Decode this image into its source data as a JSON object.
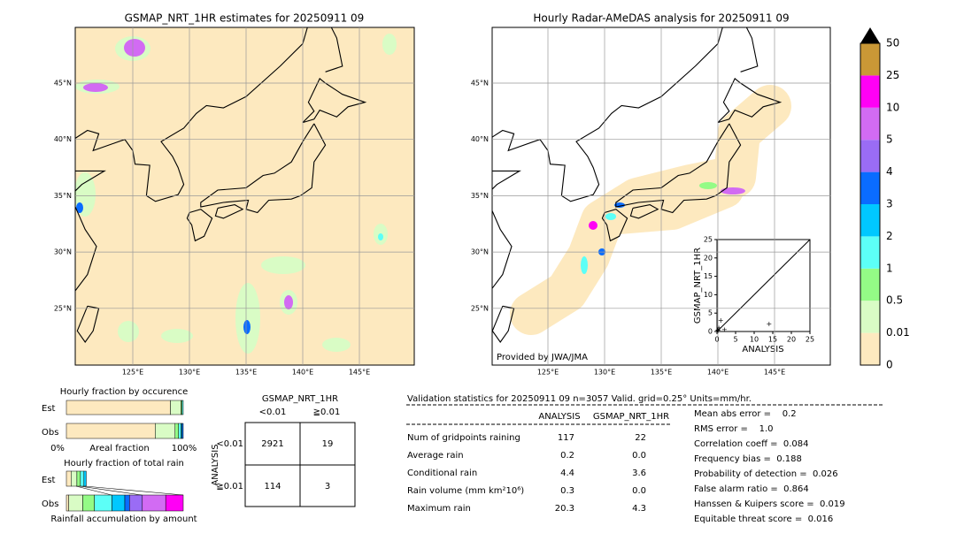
{
  "left_map": {
    "title": "GSMAP_NRT_1HR estimates for 20250911 09",
    "lat_labels": [
      "45°N",
      "40°N",
      "35°N",
      "30°N",
      "25°N"
    ],
    "lon_labels": [
      "125°E",
      "130°E",
      "135°E",
      "140°E",
      "145°E"
    ]
  },
  "right_map": {
    "title": "Hourly Radar-AMeDAS analysis for 20250911 09",
    "lat_labels": [
      "45°N",
      "40°N",
      "35°N",
      "30°N",
      "25°N"
    ],
    "lon_labels": [
      "125°E",
      "130°E",
      "135°E",
      "140°E",
      "145°E"
    ],
    "credit": "Provided by JWA/JMA",
    "inset": {
      "xlabel": "ANALYSIS",
      "ylabel": "GSMAP_NRT_1HR",
      "lim": [
        0,
        25
      ],
      "ticks": [
        0,
        5,
        10,
        15,
        20,
        25
      ],
      "points": {
        "x": [
          0.3,
          0.5,
          1,
          2,
          14,
          0.2
        ],
        "y": [
          0.2,
          1,
          3,
          0.5,
          2,
          0.4
        ]
      }
    }
  },
  "colorbar": {
    "ticks": [
      "0",
      "0.01",
      "0.5",
      "1",
      "2",
      "3",
      "4",
      "5",
      "10",
      "25",
      "50"
    ],
    "colors": [
      "#fde9bf",
      "#d9fcc5",
      "#94fb86",
      "#5cfff7",
      "#00c8ff",
      "#0a6cff",
      "#9a6cf5",
      "#d26bf3",
      "#ff00f5",
      "#ca9836"
    ]
  },
  "fraction_occurrence": {
    "title": "Hourly fraction by occurence",
    "rows": [
      "Est",
      "Obs"
    ],
    "axis_left": "0%",
    "axis_mid": "Areal fraction",
    "axis_right": "100%",
    "est": [
      89,
      9,
      1,
      1
    ],
    "obs": [
      76,
      17,
      3,
      2,
      1,
      1
    ]
  },
  "fraction_total": {
    "title": "Hourly fraction of total rain",
    "rows": [
      "Est",
      "Obs"
    ],
    "caption": "Rainfall accumulation by amount",
    "est": [
      4,
      5,
      3,
      3,
      2
    ],
    "obs": [
      2,
      12,
      10,
      15,
      11,
      4,
      11,
      20,
      15
    ]
  },
  "contingency": {
    "title": "GSMAP_NRT_1HR",
    "cols": [
      "<0.01",
      "≧0.01"
    ],
    "row_axis": "ANALYSIS",
    "rows": [
      "<0.01",
      "≧0.01"
    ],
    "cells": [
      [
        2921,
        19
      ],
      [
        114,
        3
      ]
    ]
  },
  "validation": {
    "header": "Validation statistics for 20250911 09  n=3057 Valid. grid=0.25° Units=mm/hr.",
    "columns": [
      "ANALYSIS",
      "GSMAP_NRT_1HR"
    ],
    "rows": [
      {
        "label": "Num of gridpoints raining",
        "analysis": "117",
        "gsmap": "22"
      },
      {
        "label": "Average rain",
        "analysis": "0.2",
        "gsmap": "0.0"
      },
      {
        "label": "Conditional rain",
        "analysis": "4.4",
        "gsmap": "3.6"
      },
      {
        "label": "Rain volume (mm km²10⁶)",
        "analysis": "0.3",
        "gsmap": "0.0"
      },
      {
        "label": "Maximum rain",
        "analysis": "20.3",
        "gsmap": "4.3"
      }
    ],
    "scores": [
      "Mean abs error =    0.2",
      "RMS error =    1.0",
      "Correlation coeff =  0.084",
      "Frequency bias =  0.188",
      "Probability of detection =  0.026",
      "False alarm ratio =  0.864",
      "Hanssen & Kuipers score =  0.019",
      "Equitable threat score =  0.016"
    ]
  }
}
